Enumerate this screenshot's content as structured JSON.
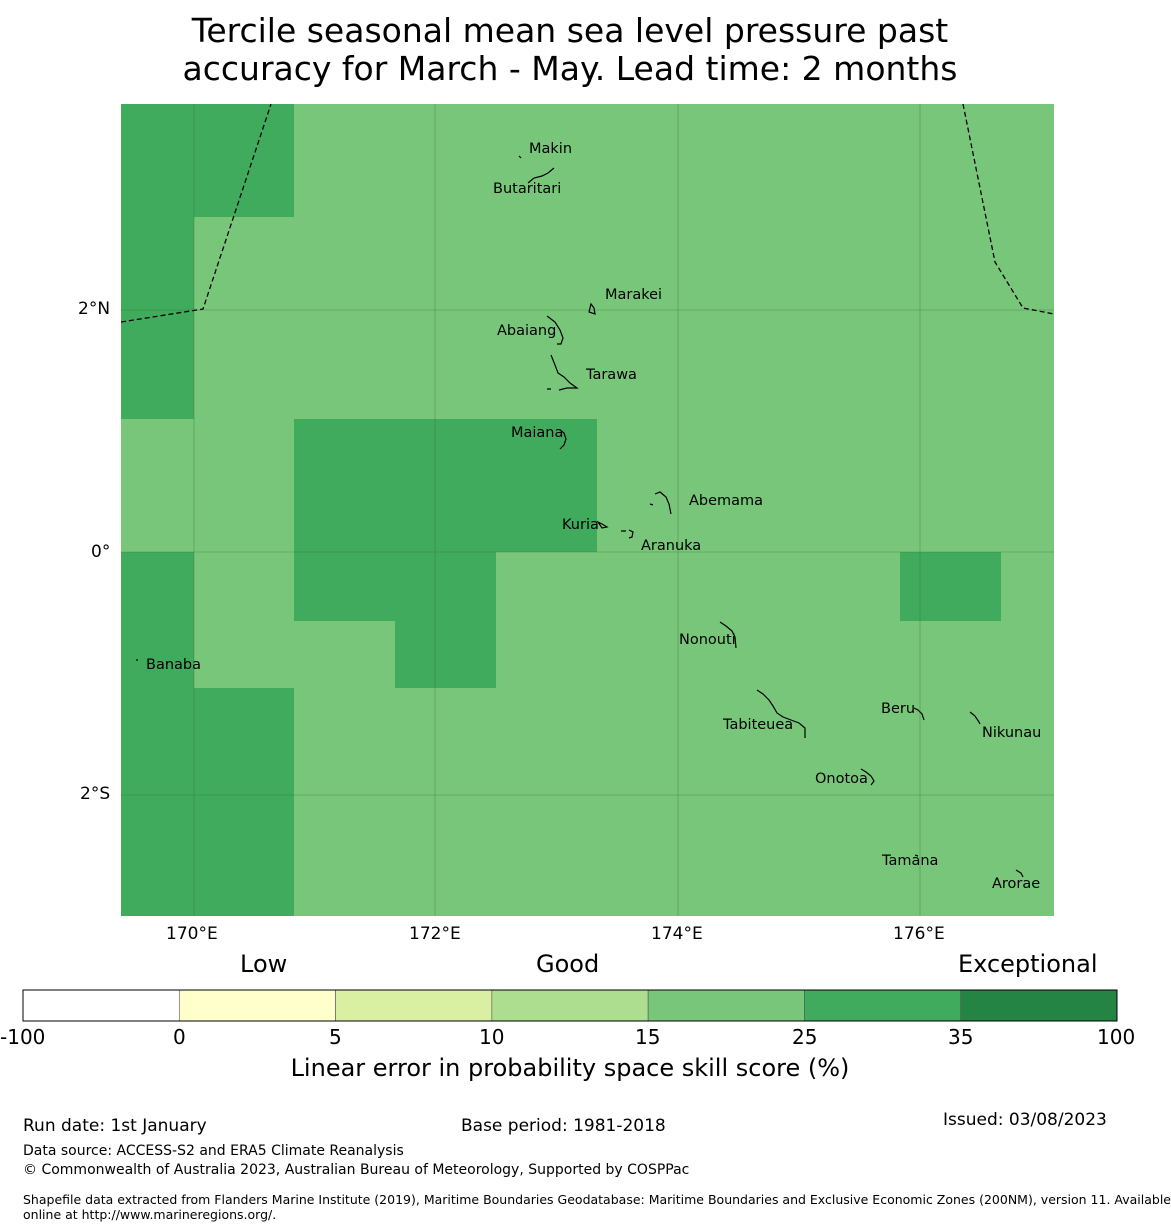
{
  "title_line1": "Tercile seasonal mean sea level pressure past",
  "title_line2": "accuracy for March - May. Lead time: 2 months",
  "map": {
    "lat_labels": [
      "2°N",
      "0°",
      "2°S"
    ],
    "lon_labels": [
      "170°E",
      "172°E",
      "174°E",
      "176°E"
    ],
    "places": [
      "Makin",
      "Butaritari",
      "Marakei",
      "Abaiang",
      "Tarawa",
      "Maiana",
      "Abemama",
      "Kuria",
      "Aranuka",
      "Nonouti",
      "Banaba",
      "Beru",
      "Nikunau",
      "Tabiteuea",
      "Onotoa",
      "Tamana",
      "Arorae"
    ],
    "skill_grid": {
      "description": "Cells coloured by skill class",
      "classes_present": [
        "15-25",
        "25-35"
      ]
    }
  },
  "colorbar": {
    "categories": [
      "Low",
      "Good",
      "Exceptional"
    ],
    "ticks": [
      "-100",
      "0",
      "5",
      "10",
      "15",
      "25",
      "35",
      "100"
    ],
    "colors": [
      "#ffffff",
      "#ffffcc",
      "#d9f0a3",
      "#addd8e",
      "#78c679",
      "#41ab5d",
      "#238443"
    ],
    "label": "Linear error in probability space skill score (%)"
  },
  "footer": {
    "run_date": "Run date: 1st January",
    "base_period": "Base period: 1981-2018",
    "issued": "Issued: 03/08/2023",
    "data_source": "Data source: ACCESS-S2 and ERA5 Climate Reanalysis",
    "copyright": "© Commonwealth of Australia 2023, Australian Bureau of Meteorology, Supported by COSPPac",
    "shapefile_line1": "Shapefile data extracted from Flanders Marine Institute (2019), Maritime Boundaries Geodatabase: Maritime Boundaries and Exclusive Economic Zones (200NM), version 11. Available",
    "shapefile_line2": "online at http://www.marineregions.org/."
  }
}
